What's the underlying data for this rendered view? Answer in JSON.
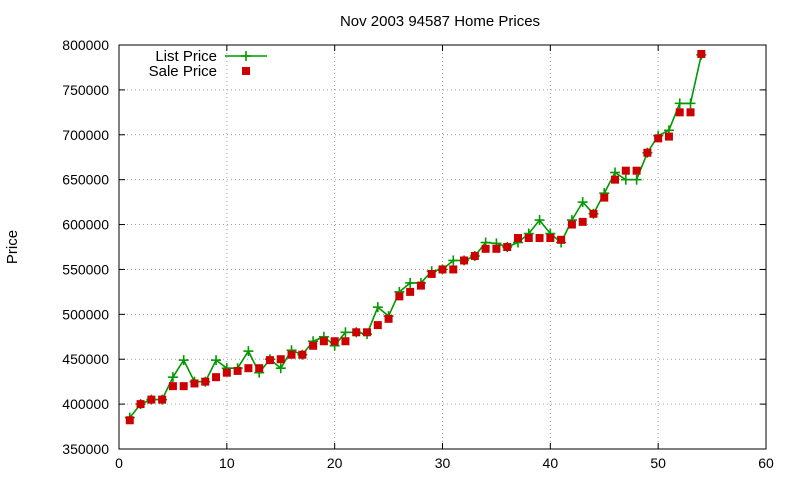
{
  "chart_data": {
    "type": "line",
    "title": "Nov 2003 94587 Home Prices",
    "xlabel": "",
    "ylabel": "Price",
    "xlim": [
      0,
      60
    ],
    "ylim": [
      350000,
      800000
    ],
    "x_ticks": [
      0,
      10,
      20,
      30,
      40,
      50,
      60
    ],
    "y_ticks": [
      350000,
      400000,
      450000,
      500000,
      550000,
      600000,
      650000,
      700000,
      750000,
      800000
    ],
    "grid": true,
    "legend_position": "top-left",
    "series": [
      {
        "name": "List Price",
        "style": "line-points",
        "marker": "plus",
        "color": "#009900",
        "x": [
          1,
          2,
          3,
          4,
          5,
          6,
          7,
          8,
          9,
          10,
          11,
          12,
          13,
          14,
          15,
          16,
          17,
          18,
          19,
          20,
          21,
          22,
          23,
          24,
          25,
          26,
          27,
          28,
          29,
          30,
          31,
          32,
          33,
          34,
          35,
          36,
          37,
          38,
          39,
          40,
          41,
          42,
          43,
          44,
          45,
          46,
          47,
          48,
          49,
          50,
          51,
          52,
          53,
          54
        ],
        "y": [
          385000,
          400000,
          405000,
          405000,
          430000,
          449000,
          425000,
          425000,
          449000,
          440000,
          440000,
          459000,
          435000,
          450000,
          440000,
          460000,
          455000,
          470000,
          475000,
          465000,
          480000,
          480000,
          478000,
          508000,
          498000,
          525000,
          535000,
          535000,
          548000,
          550000,
          560000,
          560000,
          565000,
          580000,
          579000,
          575000,
          580000,
          590000,
          605000,
          590000,
          580000,
          605000,
          625000,
          612000,
          635000,
          658000,
          650000,
          650000,
          680000,
          699000,
          705000,
          735000,
          735000,
          789000
        ]
      },
      {
        "name": "Sale Price",
        "style": "points",
        "marker": "square",
        "color": "#cc0000",
        "x": [
          1,
          2,
          3,
          4,
          5,
          6,
          7,
          8,
          9,
          10,
          11,
          12,
          13,
          14,
          15,
          16,
          17,
          18,
          19,
          20,
          21,
          22,
          23,
          24,
          25,
          26,
          27,
          28,
          29,
          30,
          31,
          32,
          33,
          34,
          35,
          36,
          37,
          38,
          39,
          40,
          41,
          42,
          43,
          44,
          45,
          46,
          47,
          48,
          49,
          50,
          51,
          52,
          53,
          54
        ],
        "y": [
          382000,
          400000,
          405000,
          405000,
          420000,
          420000,
          423000,
          425000,
          430000,
          435000,
          437000,
          440000,
          440000,
          449000,
          450000,
          455000,
          455000,
          465000,
          470000,
          470000,
          470000,
          480000,
          480000,
          488000,
          495000,
          520000,
          525000,
          532000,
          545000,
          550000,
          550000,
          560000,
          565000,
          573000,
          573000,
          575000,
          585000,
          585000,
          585000,
          585000,
          583000,
          600000,
          603000,
          612000,
          630000,
          650000,
          660000,
          660000,
          680000,
          696000,
          698000,
          725000,
          725000,
          790000
        ]
      }
    ]
  }
}
